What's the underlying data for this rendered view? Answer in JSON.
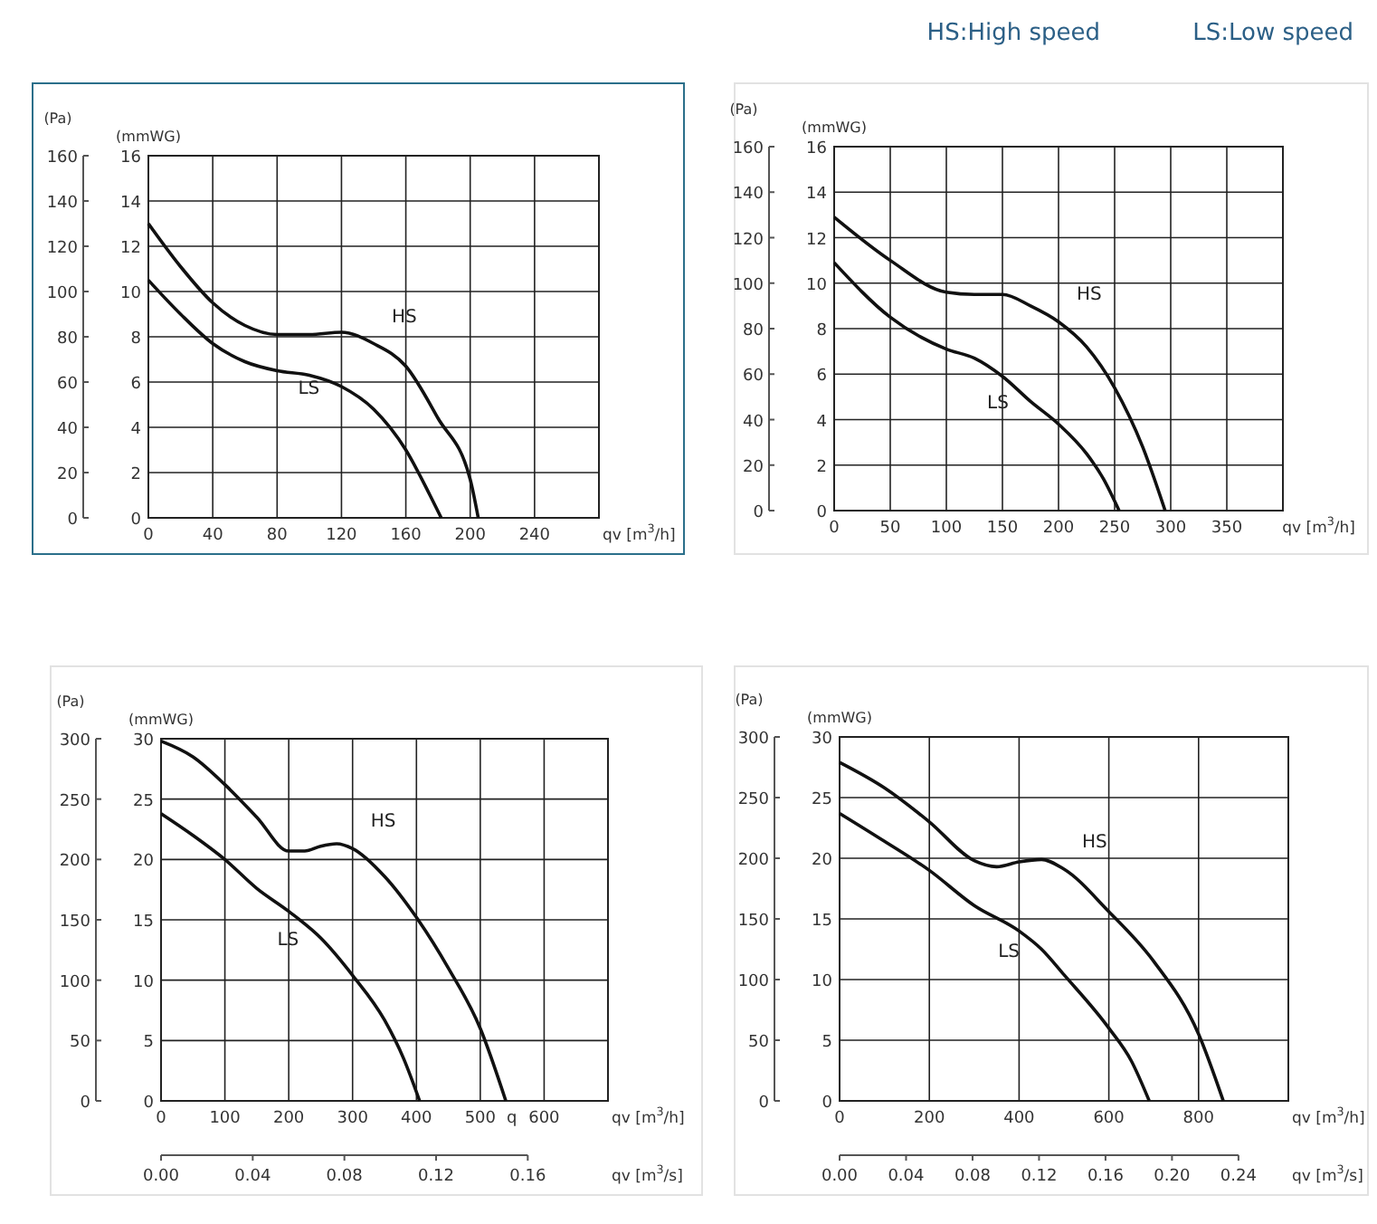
{
  "chart_data": [
    {
      "type": "line",
      "ylabel": "(Pa)",
      "y2label": "(mmWG)",
      "xlabel": "qv [m$^{3}$/h]",
      "xlim": [
        0,
        280
      ],
      "xticks": [
        0,
        40,
        80,
        120,
        160,
        200,
        240
      ],
      "ylim": [
        0,
        160
      ],
      "yticks": [
        0,
        20,
        40,
        60,
        80,
        100,
        120,
        140,
        160
      ],
      "y2lim": [
        0,
        16
      ],
      "y2ticks": [
        0,
        2,
        4,
        6,
        8,
        10,
        12,
        14,
        16
      ],
      "grid": true,
      "legend": false,
      "series": [
        {
          "name": "HS",
          "color": "#111111",
          "x": [
            0,
            20,
            40,
            60,
            80,
            100,
            120,
            140,
            160,
            180,
            200,
            205
          ],
          "values": [
            130,
            111,
            95,
            85,
            81,
            81,
            82,
            77,
            67,
            44,
            17,
            0
          ]
        },
        {
          "name": "LS",
          "color": "#111111",
          "x": [
            0,
            20,
            40,
            60,
            80,
            100,
            120,
            140,
            160,
            175,
            182
          ],
          "values": [
            105,
            90,
            77,
            69,
            65,
            63,
            58,
            48,
            30,
            10,
            0
          ]
        }
      ]
    },
    {
      "type": "line",
      "ylabel": "(Pa)",
      "y2label": "(mmWG)",
      "xlabel": "qv [m$^{3}$/h]",
      "xlim": [
        0,
        400
      ],
      "xticks": [
        0,
        50,
        100,
        150,
        200,
        250,
        300,
        350
      ],
      "ylim": [
        0,
        160
      ],
      "yticks": [
        0,
        20,
        40,
        60,
        80,
        100,
        120,
        140,
        160
      ],
      "y2lim": [
        0,
        16
      ],
      "y2ticks": [
        0,
        2,
        4,
        6,
        8,
        10,
        12,
        14,
        16
      ],
      "grid": true,
      "legend": false,
      "annotations": [
        "HS:High speed",
        "LS:Low speed"
      ],
      "series": [
        {
          "name": "HS",
          "color": "#111111",
          "x": [
            0,
            50,
            100,
            125,
            150,
            175,
            200,
            225,
            250,
            275,
            295
          ],
          "values": [
            129,
            110,
            96,
            95,
            95,
            90,
            83,
            72,
            54,
            28,
            0
          ]
        },
        {
          "name": "LS",
          "color": "#111111",
          "x": [
            0,
            50,
            100,
            125,
            150,
            175,
            200,
            225,
            240,
            254
          ],
          "values": [
            109,
            85,
            71,
            67,
            59,
            48,
            38,
            25,
            14,
            0
          ]
        }
      ]
    },
    {
      "type": "line",
      "ylabel": "(Pa)",
      "y2label": "(mmWG)",
      "xlabel": "qv [m$^{3}$/h]",
      "x2label": "qv [m$^{3}$/s]",
      "xlim": [
        0,
        700
      ],
      "xticks": [
        0,
        100,
        200,
        300,
        400,
        500,
        600
      ],
      "x2lim": [
        0,
        0.195
      ],
      "x2ticks": [
        {
          "value": 0,
          "label": "0.00"
        },
        {
          "value": 0.04,
          "label": "0.04"
        },
        {
          "value": 0.08,
          "label": "0.08"
        },
        {
          "value": 0.12,
          "label": "0.12"
        },
        {
          "value": 0.16,
          "label": "0.16"
        }
      ],
      "ylim": [
        0,
        300
      ],
      "yticks": [
        0,
        50,
        100,
        150,
        200,
        250,
        300
      ],
      "y2lim": [
        0,
        30
      ],
      "y2ticks": [
        0,
        5,
        10,
        15,
        20,
        25,
        30
      ],
      "grid": true,
      "legend": false,
      "annotations": [
        "q"
      ],
      "series": [
        {
          "name": "HS",
          "color": "#111111",
          "x": [
            0,
            50,
            100,
            150,
            200,
            225,
            250,
            275,
            300,
            350,
            400,
            450,
            500,
            540
          ],
          "values": [
            298,
            285,
            262,
            235,
            207,
            207,
            211,
            213,
            209,
            186,
            152,
            110,
            60,
            0
          ]
        },
        {
          "name": "LS",
          "color": "#111111",
          "x": [
            0,
            50,
            100,
            150,
            200,
            250,
            300,
            350,
            380,
            405
          ],
          "values": [
            238,
            220,
            200,
            176,
            157,
            135,
            104,
            67,
            35,
            0
          ]
        }
      ]
    },
    {
      "type": "line",
      "ylabel": "(Pa)",
      "y2label": "(mmWG)",
      "xlabel": "qv [m$^{3}$/h]",
      "x2label": "qv [m$^{3}$/s]",
      "xlim": [
        0,
        1000
      ],
      "xticks": [
        0,
        200,
        400,
        600,
        800
      ],
      "x2lim": [
        0,
        0.27
      ],
      "x2ticks": [
        {
          "value": 0,
          "label": "0.00"
        },
        {
          "value": 0.04,
          "label": "0.04"
        },
        {
          "value": 0.08,
          "label": "0.08"
        },
        {
          "value": 0.12,
          "label": "0.12"
        },
        {
          "value": 0.16,
          "label": "0.16"
        },
        {
          "value": 0.2,
          "label": "0.20"
        },
        {
          "value": 0.24,
          "label": "0.24"
        }
      ],
      "ylim": [
        0,
        300
      ],
      "yticks": [
        0,
        50,
        100,
        150,
        200,
        250,
        300
      ],
      "y2lim": [
        0,
        30
      ],
      "y2ticks": [
        0,
        5,
        10,
        15,
        20,
        25,
        30
      ],
      "grid": true,
      "legend": false,
      "series": [
        {
          "name": "HS",
          "color": "#111111",
          "x": [
            0,
            100,
            200,
            300,
            350,
            400,
            450,
            500,
            600,
            700,
            800,
            855
          ],
          "values": [
            279,
            258,
            230,
            198,
            193,
            197,
            199,
            191,
            156,
            115,
            55,
            0
          ]
        },
        {
          "name": "LS",
          "color": "#111111",
          "x": [
            0,
            100,
            200,
            300,
            400,
            450,
            500,
            600,
            650,
            690
          ],
          "values": [
            237,
            214,
            190,
            161,
            140,
            125,
            104,
            60,
            33,
            0
          ]
        }
      ]
    }
  ]
}
